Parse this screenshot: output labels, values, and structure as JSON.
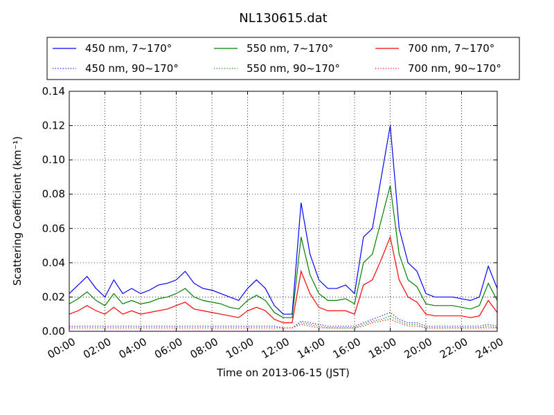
{
  "chart_data": {
    "type": "line",
    "title": "NL130615.dat",
    "xlabel": "Time on 2013-06-15 (JST)",
    "ylabel": "Scattering Coefficient (km⁻¹)",
    "x": [
      0,
      0.5,
      1,
      1.5,
      2,
      2.5,
      3,
      3.5,
      4,
      4.5,
      5,
      5.5,
      6,
      6.5,
      7,
      7.5,
      8,
      8.5,
      9,
      9.5,
      10,
      10.5,
      11,
      11.5,
      12,
      12.5,
      13,
      13.5,
      14,
      14.5,
      15,
      15.5,
      16,
      16.5,
      17,
      17.5,
      18,
      18.5,
      19,
      19.5,
      20,
      20.5,
      21,
      21.5,
      22,
      22.5,
      23,
      23.5,
      24
    ],
    "xlim": [
      0,
      24
    ],
    "xticks": [
      {
        "value": 0,
        "label": "00:00"
      },
      {
        "value": 2,
        "label": "02:00"
      },
      {
        "value": 4,
        "label": "04:00"
      },
      {
        "value": 6,
        "label": "06:00"
      },
      {
        "value": 8,
        "label": "08:00"
      },
      {
        "value": 10,
        "label": "10:00"
      },
      {
        "value": 12,
        "label": "12:00"
      },
      {
        "value": 14,
        "label": "14:00"
      },
      {
        "value": 16,
        "label": "16:00"
      },
      {
        "value": 18,
        "label": "18:00"
      },
      {
        "value": 20,
        "label": "20:00"
      },
      {
        "value": 22,
        "label": "22:00"
      },
      {
        "value": 24,
        "label": "24:00"
      }
    ],
    "ylim": [
      0,
      0.14
    ],
    "yticks": [
      {
        "value": 0,
        "label": "0.00"
      },
      {
        "value": 0.02,
        "label": "0.02"
      },
      {
        "value": 0.04,
        "label": "0.04"
      },
      {
        "value": 0.06,
        "label": "0.06"
      },
      {
        "value": 0.08,
        "label": "0.08"
      },
      {
        "value": 0.1,
        "label": "0.10"
      },
      {
        "value": 0.12,
        "label": "0.12"
      },
      {
        "value": 0.14,
        "label": "0.14"
      }
    ],
    "grid": true,
    "legend": "top",
    "series": [
      {
        "name": "450 nm, 7~170°",
        "color": "#0000ff",
        "linestyle": "solid",
        "values": [
          0.022,
          0.027,
          0.032,
          0.025,
          0.02,
          0.03,
          0.022,
          0.025,
          0.022,
          0.024,
          0.027,
          0.028,
          0.03,
          0.035,
          0.028,
          0.025,
          0.024,
          0.022,
          0.02,
          0.018,
          0.025,
          0.03,
          0.025,
          0.015,
          0.01,
          0.01,
          0.075,
          0.045,
          0.03,
          0.025,
          0.025,
          0.027,
          0.022,
          0.055,
          0.06,
          0.09,
          0.12,
          0.06,
          0.04,
          0.035,
          0.022,
          0.02,
          0.02,
          0.02,
          0.019,
          0.018,
          0.02,
          0.038,
          0.025
        ]
      },
      {
        "name": "450 nm, 90~170°",
        "color": "#0000ff",
        "linestyle": "dotted",
        "values": [
          0.003,
          0.003,
          0.003,
          0.003,
          0.003,
          0.003,
          0.003,
          0.003,
          0.003,
          0.003,
          0.003,
          0.003,
          0.003,
          0.003,
          0.003,
          0.003,
          0.003,
          0.003,
          0.003,
          0.003,
          0.003,
          0.003,
          0.003,
          0.003,
          0.002,
          0.002,
          0.006,
          0.005,
          0.004,
          0.003,
          0.003,
          0.003,
          0.003,
          0.005,
          0.007,
          0.009,
          0.011,
          0.007,
          0.005,
          0.005,
          0.003,
          0.003,
          0.003,
          0.003,
          0.003,
          0.003,
          0.003,
          0.004,
          0.003
        ]
      },
      {
        "name": "550 nm, 7~170°",
        "color": "#008000",
        "linestyle": "solid",
        "values": [
          0.016,
          0.019,
          0.023,
          0.018,
          0.015,
          0.022,
          0.016,
          0.018,
          0.016,
          0.017,
          0.019,
          0.02,
          0.022,
          0.025,
          0.02,
          0.018,
          0.017,
          0.016,
          0.014,
          0.013,
          0.018,
          0.021,
          0.018,
          0.011,
          0.008,
          0.008,
          0.055,
          0.033,
          0.022,
          0.018,
          0.018,
          0.019,
          0.016,
          0.04,
          0.045,
          0.065,
          0.085,
          0.045,
          0.03,
          0.026,
          0.016,
          0.015,
          0.015,
          0.015,
          0.014,
          0.013,
          0.015,
          0.028,
          0.018
        ]
      },
      {
        "name": "550 nm, 90~170°",
        "color": "#008000",
        "linestyle": "dotted",
        "values": [
          0.002,
          0.002,
          0.002,
          0.002,
          0.002,
          0.002,
          0.002,
          0.002,
          0.002,
          0.002,
          0.002,
          0.002,
          0.002,
          0.002,
          0.002,
          0.002,
          0.002,
          0.002,
          0.002,
          0.002,
          0.002,
          0.002,
          0.002,
          0.002,
          0.002,
          0.002,
          0.005,
          0.004,
          0.003,
          0.002,
          0.002,
          0.002,
          0.002,
          0.004,
          0.006,
          0.007,
          0.009,
          0.006,
          0.004,
          0.004,
          0.002,
          0.002,
          0.002,
          0.002,
          0.002,
          0.002,
          0.002,
          0.003,
          0.002
        ]
      },
      {
        "name": "700 nm, 7~170°",
        "color": "#ff0000",
        "linestyle": "solid",
        "values": [
          0.01,
          0.012,
          0.015,
          0.012,
          0.01,
          0.014,
          0.01,
          0.012,
          0.01,
          0.011,
          0.012,
          0.013,
          0.015,
          0.017,
          0.013,
          0.012,
          0.011,
          0.01,
          0.009,
          0.008,
          0.012,
          0.014,
          0.012,
          0.007,
          0.005,
          0.005,
          0.035,
          0.022,
          0.014,
          0.012,
          0.012,
          0.012,
          0.01,
          0.027,
          0.03,
          0.042,
          0.055,
          0.03,
          0.02,
          0.017,
          0.01,
          0.009,
          0.009,
          0.009,
          0.009,
          0.008,
          0.009,
          0.018,
          0.011
        ]
      },
      {
        "name": "700 nm, 90~170°",
        "color": "#ff0000",
        "linestyle": "dotted",
        "values": [
          0.002,
          0.002,
          0.002,
          0.002,
          0.002,
          0.002,
          0.002,
          0.002,
          0.002,
          0.002,
          0.002,
          0.002,
          0.002,
          0.002,
          0.002,
          0.002,
          0.002,
          0.002,
          0.002,
          0.002,
          0.002,
          0.002,
          0.002,
          0.002,
          0.002,
          0.002,
          0.004,
          0.003,
          0.002,
          0.002,
          0.002,
          0.002,
          0.002,
          0.003,
          0.005,
          0.006,
          0.007,
          0.005,
          0.003,
          0.003,
          0.002,
          0.002,
          0.002,
          0.002,
          0.002,
          0.002,
          0.002,
          0.002,
          0.002
        ]
      }
    ]
  }
}
